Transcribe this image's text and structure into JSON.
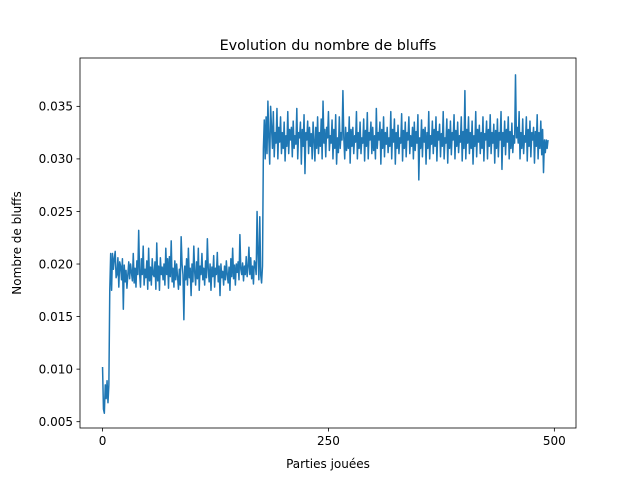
{
  "chart_data": {
    "type": "line",
    "title": "Evolution du nombre de bluffs",
    "xlabel": "Parties jouées",
    "ylabel": "Nombre de bluffs",
    "xlim": [
      -24.95,
      523.95
    ],
    "ylim": [
      0.0044,
      0.0396
    ],
    "xticks": [
      0,
      250,
      500
    ],
    "xtick_labels": [
      "0",
      "250",
      "500"
    ],
    "yticks": [
      0.005,
      0.01,
      0.015,
      0.02,
      0.025,
      0.03,
      0.035
    ],
    "ytick_labels": [
      "0.005",
      "0.010",
      "0.015",
      "0.020",
      "0.025",
      "0.030",
      "0.035"
    ],
    "grid": false,
    "color": "#1f77b4",
    "series": [
      {
        "x_start": 0,
        "x_step": 1,
        "values": [
          0.0102,
          0.0062,
          0.0058,
          0.0085,
          0.0072,
          0.0089,
          0.0068,
          0.0085,
          0.0175,
          0.021,
          0.0175,
          0.021,
          0.0195,
          0.0205,
          0.0212,
          0.0187,
          0.019,
          0.0206,
          0.0178,
          0.0202,
          0.0198,
          0.0185,
          0.0205,
          0.0157,
          0.0199,
          0.0183,
          0.0194,
          0.0177,
          0.019,
          0.0202,
          0.0186,
          0.02,
          0.0192,
          0.0184,
          0.021,
          0.0182,
          0.0196,
          0.0178,
          0.0203,
          0.019,
          0.0232,
          0.0191,
          0.0178,
          0.0205,
          0.019,
          0.0217,
          0.018,
          0.0195,
          0.0187,
          0.0203,
          0.0176,
          0.0215,
          0.0184,
          0.0197,
          0.018,
          0.0205,
          0.019,
          0.0188,
          0.0202,
          0.0176,
          0.022,
          0.0184,
          0.0198,
          0.0175,
          0.0206,
          0.019,
          0.0197,
          0.0185,
          0.02,
          0.018,
          0.0215,
          0.019,
          0.0205,
          0.0177,
          0.0207,
          0.0188,
          0.0222,
          0.0183,
          0.0196,
          0.0178,
          0.0203,
          0.0185,
          0.02,
          0.0188,
          0.0176,
          0.0195,
          0.018,
          0.0226,
          0.02,
          0.019,
          0.0147,
          0.0198,
          0.0185,
          0.0205,
          0.018,
          0.0215,
          0.0187,
          0.0196,
          0.017,
          0.02,
          0.0183,
          0.0217,
          0.0192,
          0.018,
          0.0202,
          0.0186,
          0.0215,
          0.0175,
          0.0198,
          0.019,
          0.021,
          0.0185,
          0.0196,
          0.018,
          0.0203,
          0.0187,
          0.0224,
          0.0195,
          0.0183,
          0.02,
          0.0175,
          0.0197,
          0.0188,
          0.0208,
          0.0178,
          0.0196,
          0.019,
          0.0211,
          0.0183,
          0.0198,
          0.017,
          0.02,
          0.0187,
          0.0193,
          0.018,
          0.0198,
          0.0185,
          0.0203,
          0.019,
          0.0182,
          0.0197,
          0.0175,
          0.0205,
          0.0188,
          0.0215,
          0.0186,
          0.0199,
          0.018,
          0.02,
          0.0192,
          0.0202,
          0.0185,
          0.0228,
          0.0195,
          0.019,
          0.0201,
          0.0184,
          0.0198,
          0.019,
          0.0207,
          0.0188,
          0.0197,
          0.0216,
          0.019,
          0.0206,
          0.0186,
          0.0198,
          0.0181,
          0.0203,
          0.02,
          0.019,
          0.025,
          0.021,
          0.0185,
          0.0245,
          0.019,
          0.0182,
          0.0198,
          0.031,
          0.0337,
          0.03,
          0.034,
          0.0305,
          0.0355,
          0.032,
          0.0295,
          0.035,
          0.033,
          0.031,
          0.0345,
          0.0302,
          0.0325,
          0.0315,
          0.0348,
          0.03,
          0.033,
          0.0316,
          0.034,
          0.0305,
          0.0325,
          0.031,
          0.0335,
          0.0298,
          0.0322,
          0.0312,
          0.0345,
          0.0305,
          0.0328,
          0.0318,
          0.033,
          0.0302,
          0.0336,
          0.031,
          0.0322,
          0.0314,
          0.0348,
          0.03,
          0.0325,
          0.032,
          0.0335,
          0.0295,
          0.0328,
          0.0312,
          0.0342,
          0.0286,
          0.0325,
          0.0318,
          0.0336,
          0.0305,
          0.033,
          0.0312,
          0.0324,
          0.03,
          0.0335,
          0.0318,
          0.0298,
          0.033,
          0.031,
          0.034,
          0.0305,
          0.0325,
          0.0312,
          0.0338,
          0.03,
          0.0355,
          0.0315,
          0.0328,
          0.0302,
          0.033,
          0.032,
          0.0345,
          0.0308,
          0.0322,
          0.0315,
          0.0337,
          0.03,
          0.0328,
          0.031,
          0.0342,
          0.0295,
          0.032,
          0.0306,
          0.034,
          0.031,
          0.0325,
          0.0318,
          0.0365,
          0.032,
          0.03,
          0.033,
          0.0308,
          0.0325,
          0.031,
          0.034,
          0.0296,
          0.0328,
          0.0312,
          0.033,
          0.0305,
          0.0322,
          0.0316,
          0.0345,
          0.03,
          0.0325,
          0.031,
          0.0335,
          0.0305,
          0.032,
          0.0315,
          0.0338,
          0.0298,
          0.0327,
          0.0312,
          0.0344,
          0.03,
          0.0325,
          0.0318,
          0.0335,
          0.0305,
          0.033,
          0.0308,
          0.0322,
          0.03,
          0.0348,
          0.031,
          0.0325,
          0.0318,
          0.0335,
          0.0295,
          0.0328,
          0.031,
          0.034,
          0.0302,
          0.0325,
          0.0314,
          0.033,
          0.0306,
          0.032,
          0.0312,
          0.0345,
          0.03,
          0.0328,
          0.0316,
          0.0338,
          0.0295,
          0.0325,
          0.031,
          0.0332,
          0.0305,
          0.032,
          0.0315,
          0.0343,
          0.0298,
          0.0327,
          0.031,
          0.0335,
          0.0302,
          0.0325,
          0.0318,
          0.034,
          0.0305,
          0.0322,
          0.0312,
          0.033,
          0.03,
          0.0335,
          0.0308,
          0.0326,
          0.0315,
          0.0342,
          0.028,
          0.032,
          0.031,
          0.0337,
          0.0302,
          0.0328,
          0.0316,
          0.033,
          0.0295,
          0.0325,
          0.031,
          0.0345,
          0.03,
          0.0322,
          0.0314,
          0.0336,
          0.0305,
          0.0328,
          0.0312,
          0.034,
          0.0298,
          0.0326,
          0.0318,
          0.0333,
          0.0302,
          0.0324,
          0.0312,
          0.0345,
          0.03,
          0.032,
          0.0315,
          0.0338,
          0.0296,
          0.0328,
          0.031,
          0.0336,
          0.0304,
          0.0325,
          0.0318,
          0.0342,
          0.03,
          0.0327,
          0.0312,
          0.0335,
          0.0306,
          0.0322,
          0.0316,
          0.034,
          0.0298,
          0.0326,
          0.031,
          0.0365,
          0.03,
          0.0328,
          0.0315,
          0.034,
          0.0305,
          0.0325,
          0.031,
          0.0336,
          0.0295,
          0.0322,
          0.0312,
          0.0345,
          0.0302,
          0.0328,
          0.0316,
          0.0332,
          0.0305,
          0.0325,
          0.031,
          0.034,
          0.0298,
          0.0324,
          0.0318,
          0.0336,
          0.03,
          0.0328,
          0.0312,
          0.0342,
          0.0305,
          0.0325,
          0.0315,
          0.0333,
          0.0296,
          0.0327,
          0.031,
          0.0338,
          0.0302,
          0.0325,
          0.0318,
          0.0345,
          0.029,
          0.0325,
          0.0312,
          0.0336,
          0.0304,
          0.0328,
          0.0316,
          0.034,
          0.03,
          0.0326,
          0.031,
          0.0334,
          0.0306,
          0.0322,
          0.0315,
          0.038,
          0.032,
          0.033,
          0.0315,
          0.0345,
          0.03,
          0.0325,
          0.031,
          0.0338,
          0.0305,
          0.0322,
          0.0316,
          0.034,
          0.0298,
          0.0328,
          0.0312,
          0.0336,
          0.0302,
          0.0325,
          0.0318,
          0.033,
          0.0296,
          0.0326,
          0.0312,
          0.0342,
          0.03,
          0.0325,
          0.031,
          0.0336,
          0.0304,
          0.0328,
          0.0287,
          0.0318,
          0.0306,
          0.0318,
          0.031,
          0.0318
        ]
      }
    ]
  }
}
